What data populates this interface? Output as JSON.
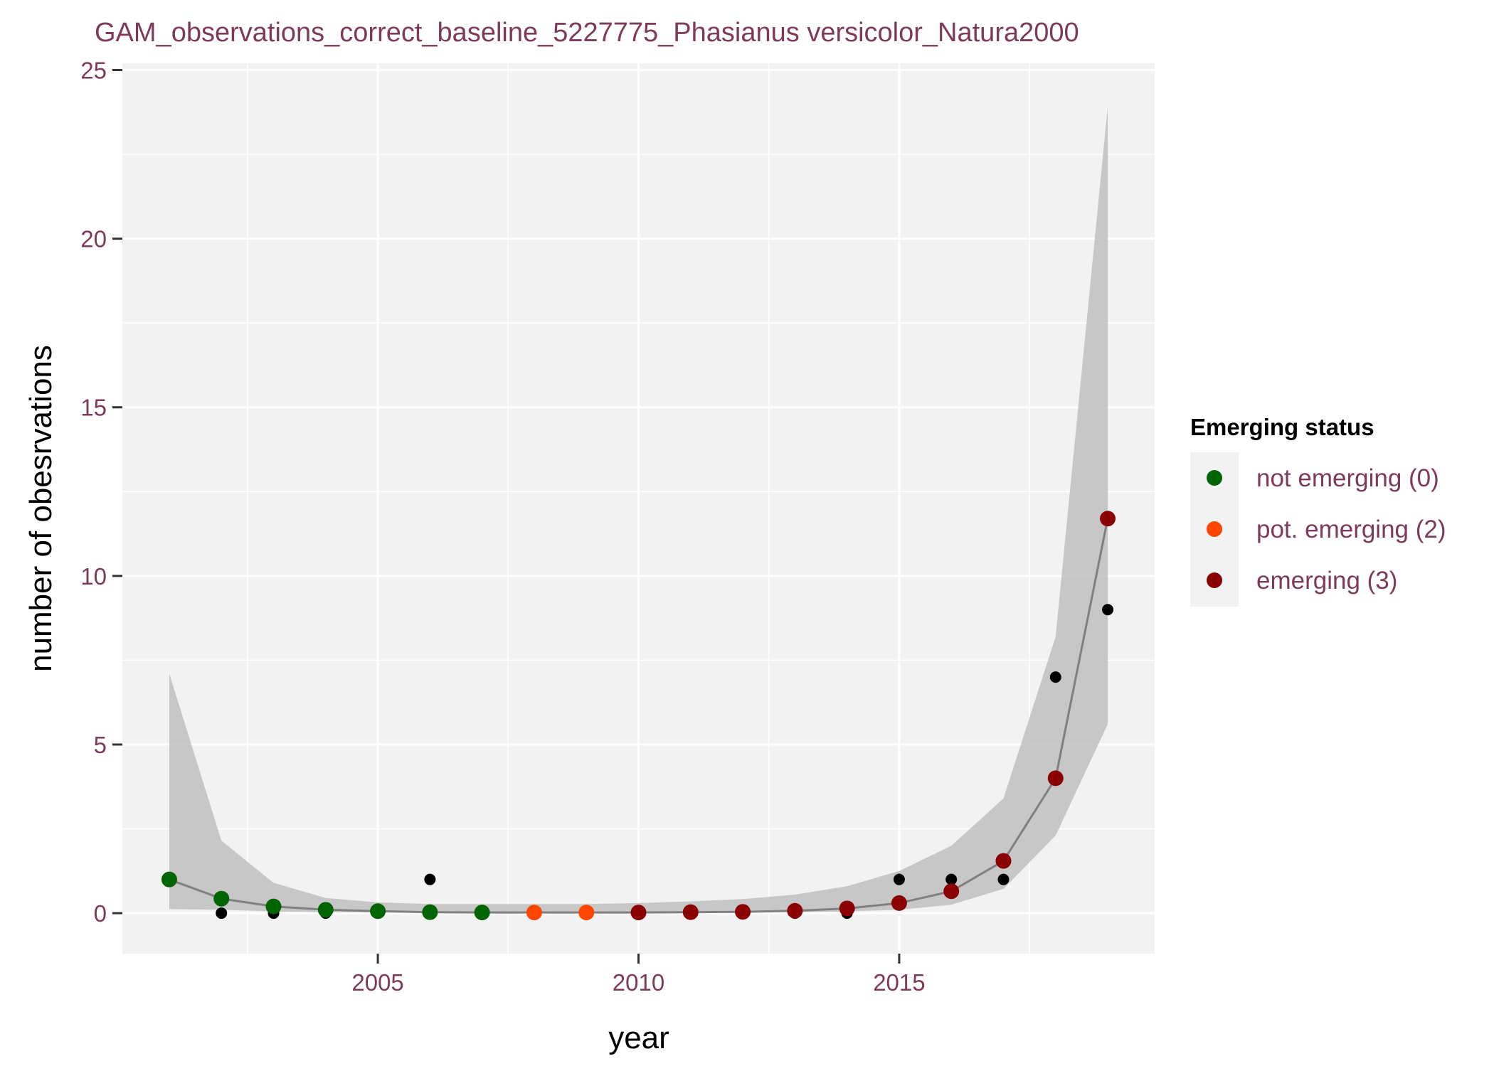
{
  "chart_data": {
    "type": "scatter",
    "title": "GAM_observations_correct_baseline_5227775_Phasianus versicolor_Natura2000",
    "xlabel": "year",
    "ylabel": "number of obesrvations",
    "xlim": [
      2000.1,
      2019.9
    ],
    "ylim": [
      -1.2,
      25.2
    ],
    "x_ticks": [
      2005,
      2010,
      2015
    ],
    "y_ticks": [
      0,
      5,
      10,
      15,
      20,
      25
    ],
    "grid": true,
    "legend": {
      "title": "Emerging status",
      "placement": "right",
      "entries": [
        {
          "label": "not emerging (0)",
          "color": "#006400"
        },
        {
          "label": "pot. emerging (2)",
          "color": "#ff4500"
        },
        {
          "label": "emerging (3)",
          "color": "#8b0000"
        }
      ]
    },
    "observed": {
      "color": "#000000",
      "x": [
        2001,
        2002,
        2003,
        2004,
        2005,
        2006,
        2007,
        2008,
        2009,
        2010,
        2011,
        2012,
        2013,
        2014,
        2015,
        2016,
        2017,
        2018,
        2019
      ],
      "y": [
        1,
        0,
        0,
        0,
        0,
        1,
        0,
        0,
        0,
        0,
        0,
        0,
        0,
        0,
        1,
        1,
        1,
        7,
        9
      ]
    },
    "fitted": {
      "line_color": "#808080",
      "x": [
        2001,
        2002,
        2003,
        2004,
        2005,
        2006,
        2007,
        2008,
        2009,
        2010,
        2011,
        2012,
        2013,
        2014,
        2015,
        2016,
        2017,
        2018,
        2019
      ],
      "y": [
        1.0,
        0.43,
        0.2,
        0.1,
        0.06,
        0.03,
        0.02,
        0.02,
        0.02,
        0.02,
        0.03,
        0.04,
        0.07,
        0.14,
        0.3,
        0.65,
        1.55,
        4.0,
        11.7
      ],
      "lower": [
        0.12,
        0.1,
        0.05,
        0.03,
        0.02,
        0.01,
        0.01,
        0.01,
        0.01,
        0.01,
        0.01,
        0.02,
        0.03,
        0.05,
        0.1,
        0.25,
        0.72,
        2.3,
        5.6
      ],
      "upper": [
        7.1,
        2.15,
        0.9,
        0.45,
        0.32,
        0.27,
        0.27,
        0.27,
        0.27,
        0.3,
        0.35,
        0.42,
        0.55,
        0.8,
        1.25,
        2.0,
        3.4,
        8.2,
        23.9
      ],
      "status": [
        0,
        0,
        0,
        0,
        0,
        0,
        0,
        2,
        2,
        3,
        3,
        3,
        3,
        3,
        3,
        3,
        3,
        3,
        3
      ]
    },
    "status_colors": {
      "0": "#006400",
      "2": "#ff4500",
      "3": "#8b0000"
    },
    "ribbon_color": "#bfbfbf"
  }
}
